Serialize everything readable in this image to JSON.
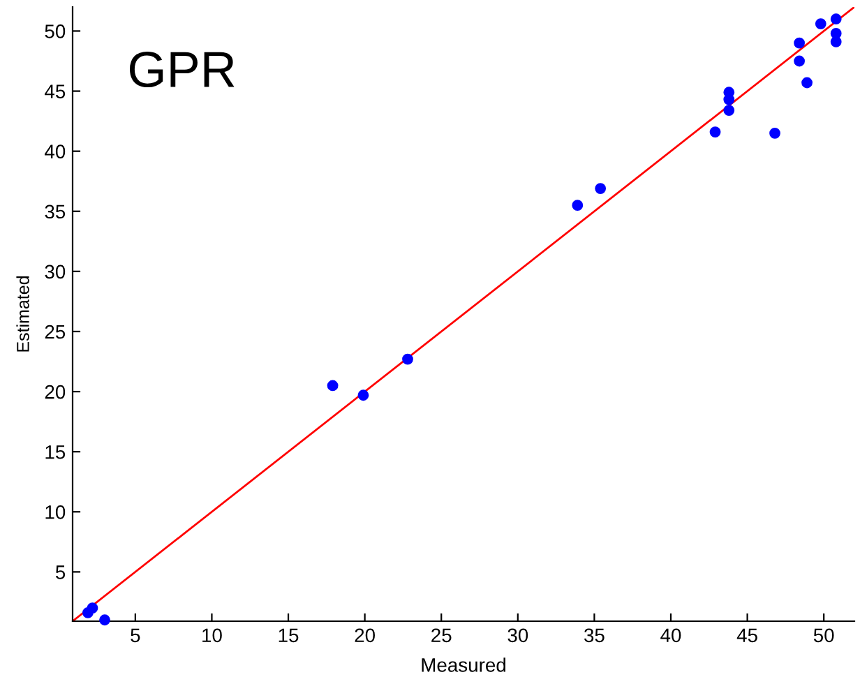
{
  "chart_data": {
    "type": "scatter",
    "xlabel": "Measured",
    "ylabel": "Estimated",
    "annotations": [
      "GPR"
    ],
    "xlim": [
      0.9,
      52
    ],
    "ylim": [
      0.9,
      52
    ],
    "xticks": [
      5,
      10,
      15,
      20,
      25,
      30,
      35,
      40,
      45,
      50
    ],
    "yticks": [
      5,
      10,
      15,
      20,
      25,
      30,
      35,
      40,
      45,
      50
    ],
    "grid": false,
    "series": [
      {
        "color": "#0000ff",
        "marker": "circle",
        "x": [
          1.9,
          2.2,
          3.0,
          17.9,
          19.9,
          22.8,
          33.9,
          35.4,
          42.9,
          43.8,
          43.8,
          43.8,
          46.8,
          48.4,
          48.4,
          48.9,
          49.8,
          50.8,
          50.8,
          50.8
        ],
        "values": [
          1.6,
          2.0,
          1.0,
          20.5,
          19.7,
          22.7,
          35.5,
          36.9,
          41.6,
          44.9,
          44.3,
          43.4,
          41.5,
          49.0,
          47.5,
          45.7,
          50.6,
          51.0,
          49.8,
          49.1
        ]
      },
      {
        "type": "line",
        "color": "#ff0000",
        "x": [
          0.9,
          52
        ],
        "values": [
          0.9,
          52
        ]
      }
    ]
  }
}
